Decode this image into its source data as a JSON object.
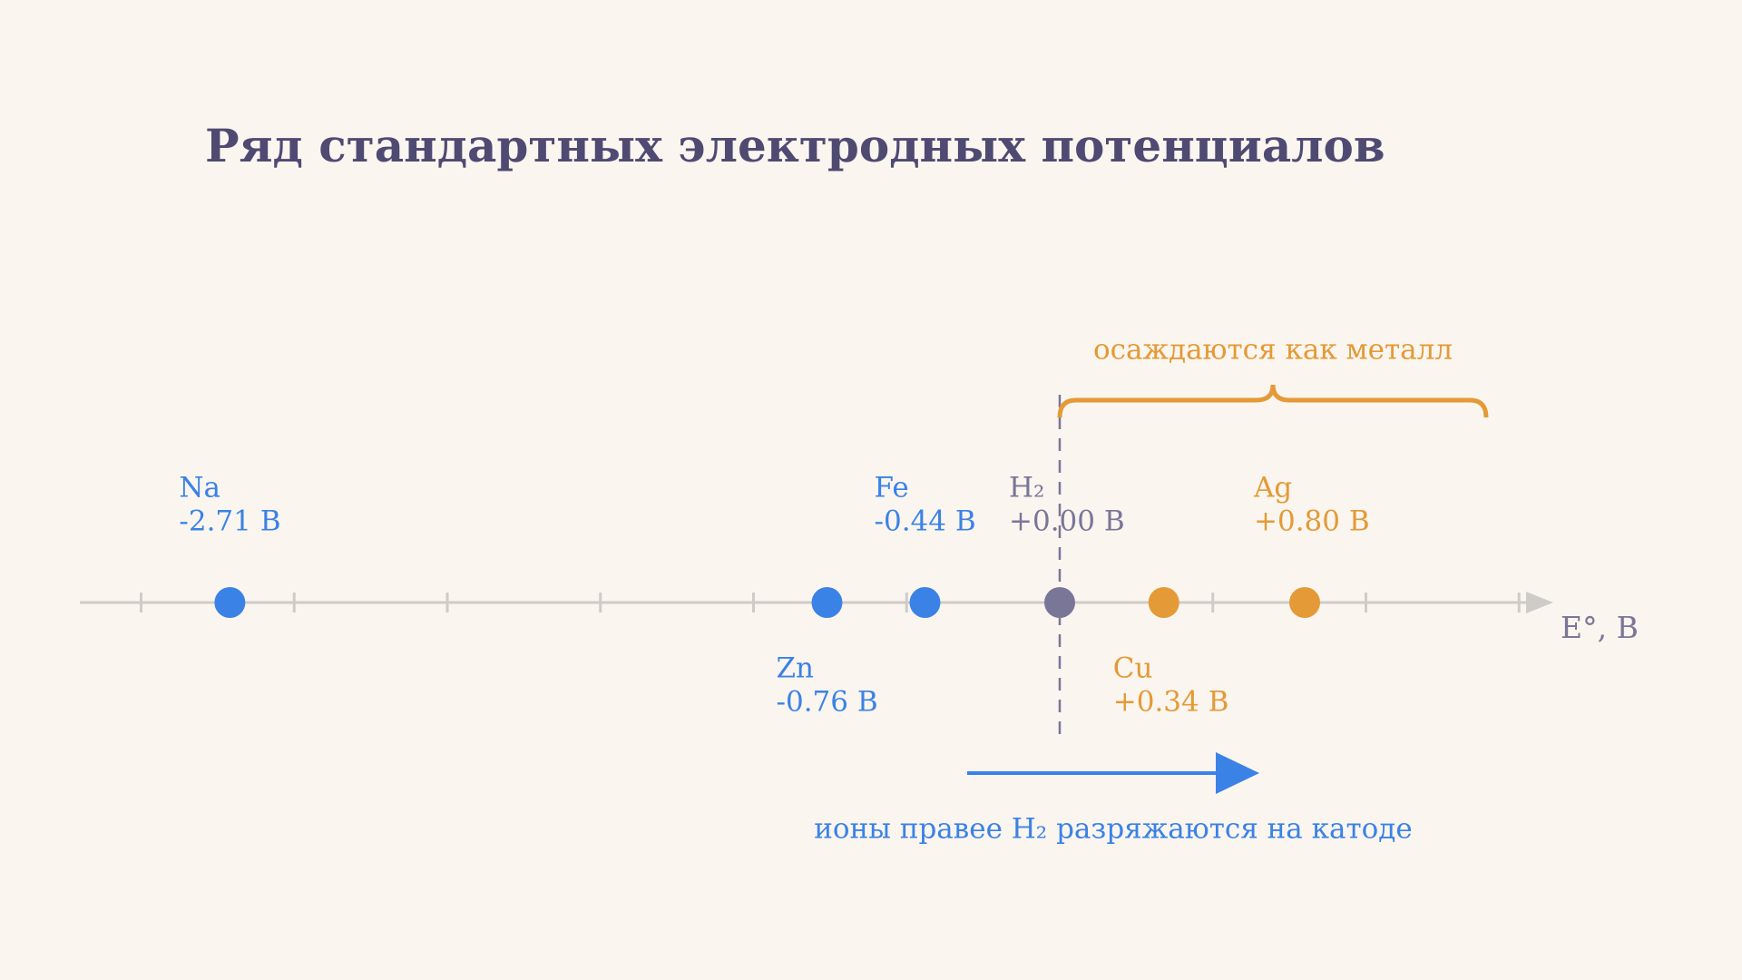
{
  "chart_data": {
    "type": "number-line",
    "title": "Ряд стандартных электродных потенциалов",
    "x_label": "E°,  В",
    "categories": [
      "Na",
      "Zn",
      "Fe",
      "H₂",
      "Cu",
      "Ag"
    ],
    "values": [
      -2.71,
      -0.76,
      -0.44,
      0,
      0.34,
      0.8
    ],
    "value_labels": [
      "-2.71 В",
      "-0.76 В",
      "-0.44 В",
      "+0.00 В",
      "+0.34 В",
      "+0.80 В"
    ],
    "colors": [
      "#3b82e6",
      "#3b82e6",
      "#3b82e6",
      "#7a7698",
      "#e49a36",
      "#e49a36"
    ],
    "xlim": [
      -3.2,
      1.6
    ],
    "xticks": [
      -3,
      -2.5,
      -2,
      -1.5,
      -1,
      -0.5,
      0,
      0.5,
      1,
      1.5
    ],
    "annotations": [
      "осаждаются как металл",
      "ионы правее H₂ разряжаются на катоде"
    ]
  }
}
